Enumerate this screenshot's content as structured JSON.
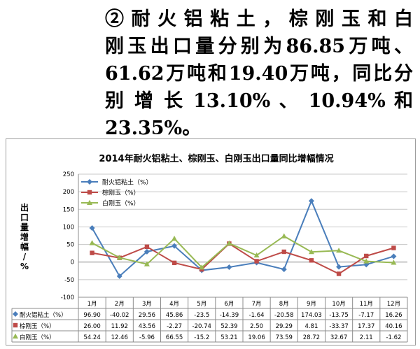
{
  "paragraph": {
    "lines": [
      "②耐火铝粘土，棕刚玉和白",
      "刚玉出口量分别为86.85万吨、",
      "61.62万吨和19.40万吨，同比分",
      "别 增 长 13.10% 、 10.94% 和",
      "23.35%。"
    ]
  },
  "chart_data": {
    "type": "line",
    "title": "2014年耐火铝粘土、棕刚玉、白刚玉出口量同比增幅情况",
    "ylabel": "出口量增幅/%",
    "xlabel": "",
    "categories": [
      "1月",
      "2月",
      "3月",
      "4月",
      "5月",
      "6月",
      "7月",
      "8月",
      "9月",
      "10月",
      "11月",
      "12月"
    ],
    "ylim": [
      -100,
      250
    ],
    "yticks": [
      -100,
      -50,
      0,
      50,
      100,
      150,
      200,
      250
    ],
    "ytick_labels": [
      "-100",
      "-50",
      "0",
      "50",
      "100",
      "150",
      "200",
      "250"
    ],
    "grid": true,
    "legend_position": "top-left",
    "series": [
      {
        "name": "耐火铝粘土（%）",
        "color": "#4a7ebb",
        "marker": "diamond",
        "values": [
          96.9,
          -40.02,
          29.56,
          45.86,
          -23.5,
          -14.39,
          -1.64,
          -20.58,
          174.03,
          -13.75,
          -7.17,
          16.26
        ],
        "labels": [
          "96.90",
          "-40.02",
          "29.56",
          "45.86",
          "-23.5",
          "-14.39",
          "-1.64",
          "-20.58",
          "174.03",
          "-13.75",
          "-7.17",
          "16.26"
        ]
      },
      {
        "name": "棕刚玉（%）",
        "color": "#be4b48",
        "marker": "square",
        "values": [
          26.0,
          11.92,
          43.56,
          -2.27,
          -20.74,
          52.39,
          2.5,
          29.29,
          4.81,
          -33.37,
          17.37,
          40.16
        ],
        "labels": [
          "26.00",
          "11.92",
          "43.56",
          "-2.27",
          "-20.74",
          "52.39",
          "2.50",
          "29.29",
          "4.81",
          "-33.37",
          "17.37",
          "40.16"
        ]
      },
      {
        "name": "白刚玉（%）",
        "color": "#98b954",
        "marker": "triangle",
        "values": [
          54.24,
          12.46,
          -5.96,
          66.55,
          -15.2,
          53.21,
          19.06,
          73.59,
          28.72,
          32.67,
          2.11,
          -1.62
        ],
        "labels": [
          "54.24",
          "12.46",
          "-5.96",
          "66.55",
          "-15.2",
          "53.21",
          "19.06",
          "73.59",
          "28.72",
          "32.67",
          "2.11",
          "-1.62"
        ]
      }
    ],
    "table_row_labels": [
      "耐火铝粘土（%）",
      "棕刚玉（%）",
      "白刚玉（%）"
    ]
  }
}
